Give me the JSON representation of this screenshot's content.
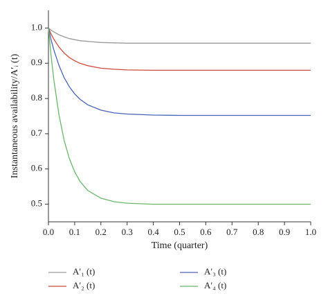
{
  "chart_data": {
    "type": "line",
    "xlabel": "Time (quarter)",
    "ylabel": "Instantaneous availability/A′ᵢ (t)",
    "x": [
      0,
      0.01,
      0.02,
      0.04,
      0.06,
      0.08,
      0.1,
      0.12,
      0.15,
      0.2,
      0.25,
      0.3,
      0.4,
      0.5,
      0.6,
      0.7,
      0.8,
      0.9,
      1.0
    ],
    "series": [
      {
        "name": "A′₁ (t)",
        "color": "#9a9a9a",
        "values": [
          1,
          0.994,
          0.989,
          0.981,
          0.975,
          0.97,
          0.967,
          0.964,
          0.962,
          0.959,
          0.958,
          0.957,
          0.957,
          0.957,
          0.957,
          0.957,
          0.957,
          0.957,
          0.957
        ]
      },
      {
        "name": "A′₂ (t)",
        "color": "#cc4a3c",
        "values": [
          1,
          0.983,
          0.969,
          0.946,
          0.929,
          0.916,
          0.907,
          0.9,
          0.893,
          0.886,
          0.883,
          0.881,
          0.88,
          0.88,
          0.88,
          0.88,
          0.88,
          0.88,
          0.88
        ]
      },
      {
        "name": "A′₃ (t)",
        "color": "#4a62b5",
        "values": [
          1,
          0.967,
          0.939,
          0.894,
          0.859,
          0.833,
          0.813,
          0.798,
          0.782,
          0.767,
          0.759,
          0.756,
          0.753,
          0.752,
          0.752,
          0.752,
          0.752,
          0.752,
          0.752
        ]
      },
      {
        "name": "A′₄ (t)",
        "color": "#6cb56c",
        "values": [
          1,
          0.922,
          0.856,
          0.754,
          0.681,
          0.629,
          0.592,
          0.565,
          0.539,
          0.517,
          0.507,
          0.503,
          0.5,
          0.5,
          0.5,
          0.5,
          0.5,
          0.5,
          0.5
        ]
      }
    ],
    "xlim": [
      0,
      1.0
    ],
    "xticks": [
      {
        "value": 0,
        "label": "0.0"
      },
      0.1,
      0.2,
      0.3,
      0.4,
      0.5,
      0.6,
      0.7,
      0.8,
      0.9,
      {
        "value": 1.0,
        "label": "1.0"
      }
    ],
    "ylim": [
      0.45,
      1.05
    ],
    "yticks": [
      0.5,
      0.6,
      0.7,
      0.8,
      0.9,
      {
        "value": 1.0,
        "label": "1.0"
      }
    ],
    "grid": false,
    "legend": "bottom"
  }
}
